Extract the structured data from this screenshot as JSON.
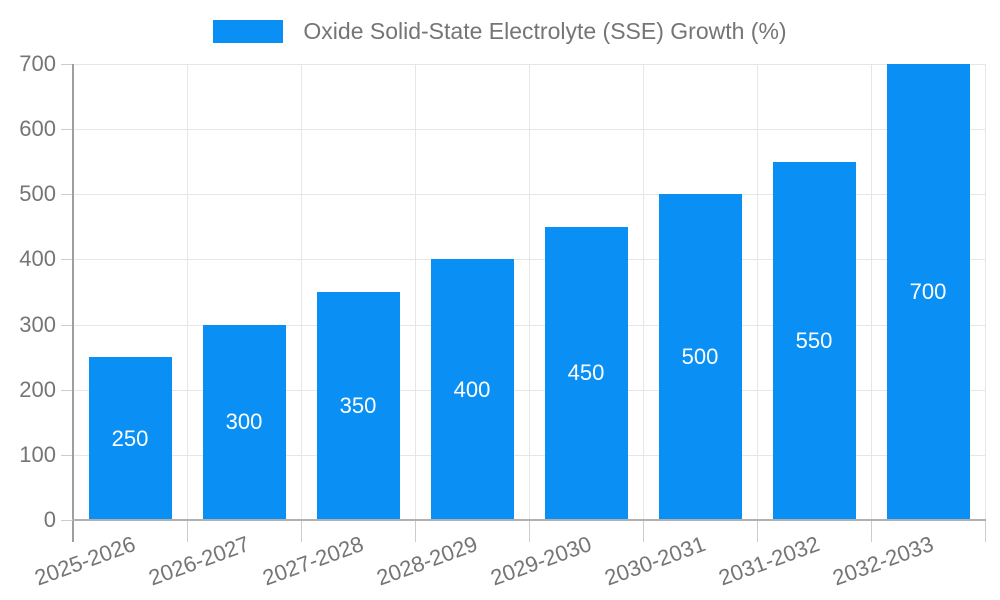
{
  "chart_data": {
    "type": "bar",
    "title": "",
    "legend": "Oxide Solid-State Electrolyte (SSE) Growth (%)",
    "legend_position": "top-center",
    "categories": [
      "2025-2026",
      "2026-2027",
      "2027-2028",
      "2028-2029",
      "2029-2030",
      "2030-2031",
      "2031-2032",
      "2032-2033"
    ],
    "values": [
      250,
      300,
      350,
      400,
      450,
      500,
      550,
      700
    ],
    "value_labels": [
      "250",
      "300",
      "350",
      "400",
      "450",
      "500",
      "550",
      "700"
    ],
    "xlabel": "",
    "ylabel": "",
    "ylim": [
      0,
      700
    ],
    "yticks": [
      0,
      100,
      200,
      300,
      400,
      500,
      600,
      700
    ],
    "grid": true,
    "colors": {
      "bar": "#0a90f5",
      "value_label": "#ffffff",
      "tick_label": "#757575",
      "legend_text": "#757575",
      "grid_line": "#e6e6e6",
      "axis_line": "#b0b0b0",
      "minor_tick": "#cccccc",
      "background": "#ffffff"
    }
  }
}
